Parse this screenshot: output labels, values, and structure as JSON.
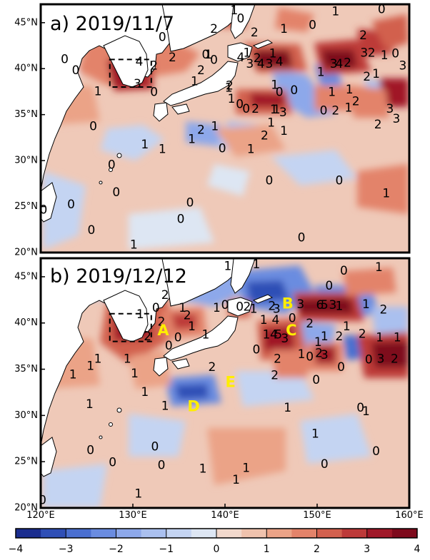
{
  "chart_data": [
    {
      "type": "heatmap",
      "panel_title": "a) 2019/11/7",
      "lon_range": [
        120,
        160
      ],
      "lat_range": [
        20,
        47
      ],
      "y_ticks": [
        20,
        25,
        30,
        35,
        40,
        45
      ],
      "y_tick_labels": [
        "20°N",
        "25°N",
        "30°N",
        "35°N",
        "40°N",
        "45°N"
      ],
      "boxed_region": {
        "lon": [
          127.5,
          132
        ],
        "lat": [
          38,
          41
        ]
      },
      "contour_labels": [
        {
          "text": "1",
          "lon": 141,
          "lat": 46.3
        },
        {
          "text": "0",
          "lon": 141.7,
          "lat": 45.4
        },
        {
          "text": "1",
          "lon": 146.4,
          "lat": 44.3
        },
        {
          "text": "0",
          "lon": 149.5,
          "lat": 44.7
        },
        {
          "text": "1",
          "lon": 152,
          "lat": 46.2
        },
        {
          "text": "0",
          "lon": 157,
          "lat": 46.4
        },
        {
          "text": "2",
          "lon": 155,
          "lat": 43.6
        },
        {
          "text": "0",
          "lon": 133.2,
          "lat": 43.4
        },
        {
          "text": "2",
          "lon": 138.8,
          "lat": 44.3
        },
        {
          "text": "1",
          "lon": 138.2,
          "lat": 41.5
        },
        {
          "text": "0",
          "lon": 138.8,
          "lat": 40.9
        },
        {
          "text": "2",
          "lon": 143.2,
          "lat": 43.9
        },
        {
          "text": "1",
          "lon": 142.4,
          "lat": 41.7
        },
        {
          "text": "2",
          "lon": 143.5,
          "lat": 41.1
        },
        {
          "text": "4",
          "lon": 141.7,
          "lat": 41.2
        },
        {
          "text": "1",
          "lon": 145.2,
          "lat": 41.6
        },
        {
          "text": "3",
          "lon": 142.7,
          "lat": 40.5
        },
        {
          "text": "4",
          "lon": 143.9,
          "lat": 40.5
        },
        {
          "text": "3",
          "lon": 144.8,
          "lat": 40.5
        },
        {
          "text": "4",
          "lon": 145.9,
          "lat": 40.7
        },
        {
          "text": "1",
          "lon": 145.4,
          "lat": 38.2
        },
        {
          "text": "0",
          "lon": 147.5,
          "lat": 37.6
        },
        {
          "text": "1",
          "lon": 150.4,
          "lat": 39.6
        },
        {
          "text": "3",
          "lon": 151.8,
          "lat": 40.5
        },
        {
          "text": "4",
          "lon": 152.4,
          "lat": 40.5
        },
        {
          "text": "2",
          "lon": 153.3,
          "lat": 40.6
        },
        {
          "text": "3",
          "lon": 155.1,
          "lat": 41.7
        },
        {
          "text": "2",
          "lon": 155.9,
          "lat": 41.7
        },
        {
          "text": "1",
          "lon": 157.3,
          "lat": 41.4
        },
        {
          "text": "0",
          "lon": 158.5,
          "lat": 41.6
        },
        {
          "text": "3",
          "lon": 159.3,
          "lat": 40.3
        },
        {
          "text": "2",
          "lon": 155.4,
          "lat": 39.1
        },
        {
          "text": "1",
          "lon": 156.4,
          "lat": 39.4
        },
        {
          "text": "1",
          "lon": 153.5,
          "lat": 37.7
        },
        {
          "text": "2",
          "lon": 154.2,
          "lat": 36.4
        },
        {
          "text": "1",
          "lon": 153.4,
          "lat": 35.7
        },
        {
          "text": "2",
          "lon": 152,
          "lat": 35.4
        },
        {
          "text": "1",
          "lon": 151.6,
          "lat": 37.4
        },
        {
          "text": "2",
          "lon": 156.6,
          "lat": 33.9
        },
        {
          "text": "3",
          "lon": 157.9,
          "lat": 35.6
        },
        {
          "text": "3",
          "lon": 158.6,
          "lat": 34.5
        },
        {
          "text": "0",
          "lon": 150.7,
          "lat": 35.4
        },
        {
          "text": "3",
          "lon": 146.3,
          "lat": 35.2
        },
        {
          "text": "1",
          "lon": 145.6,
          "lat": 35.5
        },
        {
          "text": "1",
          "lon": 145.3,
          "lat": 35.5
        },
        {
          "text": "2",
          "lon": 143.3,
          "lat": 35.6
        },
        {
          "text": "0",
          "lon": 142.3,
          "lat": 35.6
        },
        {
          "text": "0",
          "lon": 145.9,
          "lat": 37.4
        },
        {
          "text": "0",
          "lon": 122.6,
          "lat": 41
        },
        {
          "text": "0",
          "lon": 123.8,
          "lat": 39.8
        },
        {
          "text": "1",
          "lon": 126.2,
          "lat": 37.5
        },
        {
          "text": "4",
          "lon": 130.7,
          "lat": 40.7
        },
        {
          "text": "2",
          "lon": 132.3,
          "lat": 40.3
        },
        {
          "text": "3",
          "lon": 130.5,
          "lat": 38.3
        },
        {
          "text": "0",
          "lon": 132.3,
          "lat": 37.4
        },
        {
          "text": "2",
          "lon": 134.3,
          "lat": 41.2
        },
        {
          "text": "1",
          "lon": 136.7,
          "lat": 38.6
        },
        {
          "text": "2",
          "lon": 137.4,
          "lat": 39.8
        },
        {
          "text": "0",
          "lon": 137.9,
          "lat": 41.5
        },
        {
          "text": "1",
          "lon": 140.4,
          "lat": 37.9
        },
        {
          "text": "0",
          "lon": 141.6,
          "lat": 36.1
        },
        {
          "text": "1",
          "lon": 140.7,
          "lat": 36.7
        },
        {
          "text": "2",
          "lon": 140.5,
          "lat": 38.1
        },
        {
          "text": "0",
          "lon": 125.7,
          "lat": 33.7
        },
        {
          "text": "1",
          "lon": 131.3,
          "lat": 31.7
        },
        {
          "text": "1",
          "lon": 133.2,
          "lat": 31.2
        },
        {
          "text": "1",
          "lon": 138.9,
          "lat": 33.7
        },
        {
          "text": "1",
          "lon": 136.4,
          "lat": 32.3
        },
        {
          "text": "2",
          "lon": 137.4,
          "lat": 33.3
        },
        {
          "text": "0",
          "lon": 139.7,
          "lat": 31.3
        },
        {
          "text": "1",
          "lon": 142.8,
          "lat": 31.2
        },
        {
          "text": "2",
          "lon": 144.3,
          "lat": 32.7
        },
        {
          "text": "1",
          "lon": 145,
          "lat": 34.1
        },
        {
          "text": "1",
          "lon": 146.4,
          "lat": 33.2
        },
        {
          "text": "0",
          "lon": 127.7,
          "lat": 29.5
        },
        {
          "text": "0",
          "lon": 128.2,
          "lat": 26.5
        },
        {
          "text": "0",
          "lon": 123.3,
          "lat": 25.2
        },
        {
          "text": "0",
          "lon": 120.3,
          "lat": 24.6
        },
        {
          "text": "0",
          "lon": 144.8,
          "lat": 27.8
        },
        {
          "text": "0",
          "lon": 135.2,
          "lat": 23.6
        },
        {
          "text": "0",
          "lon": 125.5,
          "lat": 22.4
        },
        {
          "text": "0",
          "lon": 136.2,
          "lat": 25.4
        },
        {
          "text": "1",
          "lon": 130.1,
          "lat": 20.8
        },
        {
          "text": "0",
          "lon": 148.3,
          "lat": 21.6
        },
        {
          "text": "1",
          "lon": 157.5,
          "lat": 26.4
        },
        {
          "text": "0",
          "lon": 152.4,
          "lat": 27.8
        }
      ]
    },
    {
      "type": "heatmap",
      "panel_title": "b) 2019/12/12",
      "lon_range": [
        120,
        160
      ],
      "lat_range": [
        20,
        47
      ],
      "x_ticks": [
        120,
        130,
        140,
        150,
        160
      ],
      "x_tick_labels": [
        "120°E",
        "130°E",
        "140°E",
        "150°E",
        "160°E"
      ],
      "y_ticks": [
        20,
        25,
        30,
        35,
        40,
        45
      ],
      "y_tick_labels": [
        "20°N",
        "25°N",
        "30°N",
        "35°N",
        "40°N",
        "45°N"
      ],
      "boxed_region": {
        "lon": [
          127.5,
          132
        ],
        "lat": [
          38,
          41
        ]
      },
      "site_labels": [
        {
          "text": "A",
          "lon": 133.3,
          "lat": 39.2
        },
        {
          "text": "B",
          "lon": 146.8,
          "lat": 42.1
        },
        {
          "text": "C",
          "lon": 147.2,
          "lat": 39.2
        },
        {
          "text": "D",
          "lon": 136.6,
          "lat": 31.0
        },
        {
          "text": "E",
          "lon": 140.6,
          "lat": 33.6
        }
      ],
      "contour_labels": [
        {
          "text": "1",
          "lon": 143.4,
          "lat": 46.3
        },
        {
          "text": "1",
          "lon": 140.3,
          "lat": 46.1
        },
        {
          "text": "0",
          "lon": 152.9,
          "lat": 45.6
        },
        {
          "text": "1",
          "lon": 156.7,
          "lat": 46
        },
        {
          "text": "0",
          "lon": 151.3,
          "lat": 44
        },
        {
          "text": "2",
          "lon": 133.5,
          "lat": 43
        },
        {
          "text": "0",
          "lon": 132.5,
          "lat": 41.6
        },
        {
          "text": "2",
          "lon": 133.1,
          "lat": 40.1
        },
        {
          "text": "1",
          "lon": 135.4,
          "lat": 41.6
        },
        {
          "text": "2",
          "lon": 135.9,
          "lat": 40.8
        },
        {
          "text": "1",
          "lon": 136.4,
          "lat": 39.6
        },
        {
          "text": "0",
          "lon": 140,
          "lat": 41.9
        },
        {
          "text": "1",
          "lon": 139.1,
          "lat": 41.6
        },
        {
          "text": "0",
          "lon": 141.6,
          "lat": 41.7
        },
        {
          "text": "2",
          "lon": 142.4,
          "lat": 41.7
        },
        {
          "text": "1",
          "lon": 143.1,
          "lat": 41.5
        },
        {
          "text": "2",
          "lon": 145.1,
          "lat": 41.8
        },
        {
          "text": "3",
          "lon": 145.6,
          "lat": 41.5
        },
        {
          "text": "1",
          "lon": 144.2,
          "lat": 40.3
        },
        {
          "text": "4",
          "lon": 145.5,
          "lat": 40.3
        },
        {
          "text": "0",
          "lon": 147.3,
          "lat": 40.5
        },
        {
          "text": "3",
          "lon": 148.2,
          "lat": 42.0
        },
        {
          "text": "6",
          "lon": 150.3,
          "lat": 41.9
        },
        {
          "text": "5",
          "lon": 150.8,
          "lat": 41.9
        },
        {
          "text": "3",
          "lon": 151.7,
          "lat": 41.9
        },
        {
          "text": "1",
          "lon": 152.4,
          "lat": 41.8
        },
        {
          "text": "1",
          "lon": 155.3,
          "lat": 42
        },
        {
          "text": "2",
          "lon": 157.2,
          "lat": 41.4
        },
        {
          "text": "2",
          "lon": 149.2,
          "lat": 39.9
        },
        {
          "text": "1",
          "lon": 153.2,
          "lat": 39.6
        },
        {
          "text": "2",
          "lon": 154.9,
          "lat": 38.8
        },
        {
          "text": "1",
          "lon": 156.8,
          "lat": 38.4
        },
        {
          "text": "1",
          "lon": 158.7,
          "lat": 38.4
        },
        {
          "text": "1",
          "lon": 144.5,
          "lat": 38.7
        },
        {
          "text": "4",
          "lon": 145.3,
          "lat": 38.7
        },
        {
          "text": "5",
          "lon": 145.8,
          "lat": 38.7
        },
        {
          "text": "3",
          "lon": 146.5,
          "lat": 38.3
        },
        {
          "text": "1",
          "lon": 150.8,
          "lat": 38.5
        },
        {
          "text": "2",
          "lon": 152.4,
          "lat": 38.5
        },
        {
          "text": "1",
          "lon": 150.1,
          "lat": 37.9
        },
        {
          "text": "0",
          "lon": 143.4,
          "lat": 37.1
        },
        {
          "text": "2",
          "lon": 145.7,
          "lat": 36.1
        },
        {
          "text": "1",
          "lon": 148.3,
          "lat": 36.6
        },
        {
          "text": "0",
          "lon": 149.2,
          "lat": 36.3
        },
        {
          "text": "3",
          "lon": 150.8,
          "lat": 36.5
        },
        {
          "text": "2",
          "lon": 145.4,
          "lat": 34.3
        },
        {
          "text": "0",
          "lon": 152.6,
          "lat": 35.2
        },
        {
          "text": "0",
          "lon": 155.6,
          "lat": 36.0
        },
        {
          "text": "3",
          "lon": 156.9,
          "lat": 36.1
        },
        {
          "text": "2",
          "lon": 158.4,
          "lat": 36.1
        },
        {
          "text": "0",
          "lon": 149.9,
          "lat": 33.8
        },
        {
          "text": "1",
          "lon": 126.2,
          "lat": 36.1
        },
        {
          "text": "1",
          "lon": 123.5,
          "lat": 34.4
        },
        {
          "text": "1",
          "lon": 125.4,
          "lat": 35.3
        },
        {
          "text": "1",
          "lon": 129.4,
          "lat": 36.1
        },
        {
          "text": "1",
          "lon": 130.8,
          "lat": 40.9
        },
        {
          "text": "2",
          "lon": 131.6,
          "lat": 38.5
        },
        {
          "text": "0",
          "lon": 133.9,
          "lat": 37.5
        },
        {
          "text": "0",
          "lon": 134.9,
          "lat": 38.4
        },
        {
          "text": "1",
          "lon": 137.9,
          "lat": 38.7
        },
        {
          "text": "2",
          "lon": 138.6,
          "lat": 35.2
        },
        {
          "text": "1",
          "lon": 130.2,
          "lat": 34.5
        },
        {
          "text": "1",
          "lon": 131.3,
          "lat": 32.5
        },
        {
          "text": "1",
          "lon": 133.5,
          "lat": 31.0
        },
        {
          "text": "1",
          "lon": 125.3,
          "lat": 31.2
        },
        {
          "text": "0",
          "lon": 125.4,
          "lat": 26.2
        },
        {
          "text": "0",
          "lon": 127.8,
          "lat": 24.9
        },
        {
          "text": "0",
          "lon": 132.4,
          "lat": 26.6
        },
        {
          "text": "0",
          "lon": 133.1,
          "lat": 24.6
        },
        {
          "text": "1",
          "lon": 137.6,
          "lat": 24.2
        },
        {
          "text": "1",
          "lon": 141.2,
          "lat": 23.0
        },
        {
          "text": "1",
          "lon": 142.3,
          "lat": 24.3
        },
        {
          "text": "1",
          "lon": 149.8,
          "lat": 28.0
        },
        {
          "text": "1",
          "lon": 155.3,
          "lat": 30.4
        },
        {
          "text": "0",
          "lon": 156.4,
          "lat": 26.1
        },
        {
          "text": "1",
          "lon": 146.8,
          "lat": 30.8
        },
        {
          "text": "0",
          "lon": 154.7,
          "lat": 30.8
        },
        {
          "text": "0",
          "lon": 150.8,
          "lat": 24.7
        },
        {
          "text": "1",
          "lon": 130.6,
          "lat": 21.5
        },
        {
          "text": "0",
          "lon": 120.2,
          "lat": 20.8
        },
        {
          "text": "2",
          "lon": 150.2,
          "lat": 36.7
        }
      ]
    }
  ],
  "colorbar": {
    "ticks": [
      -4,
      -3,
      -2,
      -1,
      0,
      1,
      2,
      3,
      4
    ],
    "tick_labels": [
      "−4",
      "−3",
      "−2",
      "−1",
      "0",
      "1",
      "2",
      "3",
      "4"
    ],
    "bins": [
      {
        "range": [
          -4,
          -3.5
        ],
        "color": "#1a2d8f"
      },
      {
        "range": [
          -3.5,
          -3
        ],
        "color": "#2f4fb6"
      },
      {
        "range": [
          -3,
          -2.5
        ],
        "color": "#4a6fd0"
      },
      {
        "range": [
          -2.5,
          -2
        ],
        "color": "#6a8ce0"
      },
      {
        "range": [
          -2,
          -1.5
        ],
        "color": "#8da8ea"
      },
      {
        "range": [
          -1.5,
          -1
        ],
        "color": "#aac0ef"
      },
      {
        "range": [
          -1,
          -0.5
        ],
        "color": "#c4d4f2"
      },
      {
        "range": [
          -0.5,
          0
        ],
        "color": "#dde6f3"
      },
      {
        "range": [
          0,
          0.5
        ],
        "color": "#f1d8cc"
      },
      {
        "range": [
          0.5,
          1
        ],
        "color": "#efc2ad"
      },
      {
        "range": [
          1,
          1.5
        ],
        "color": "#eba387"
      },
      {
        "range": [
          1.5,
          2
        ],
        "color": "#e3836a"
      },
      {
        "range": [
          2,
          2.5
        ],
        "color": "#d2604e"
      },
      {
        "range": [
          2.5,
          3
        ],
        "color": "#bd3a39"
      },
      {
        "range": [
          3,
          3.5
        ],
        "color": "#a01828"
      },
      {
        "range": [
          3.5,
          4
        ],
        "color": "#7e0a1c"
      }
    ]
  },
  "colors": {
    "ocean_base": "#efc9b8",
    "land": "#ffffff",
    "coast": "#000000",
    "site_label": "#ffee00"
  }
}
